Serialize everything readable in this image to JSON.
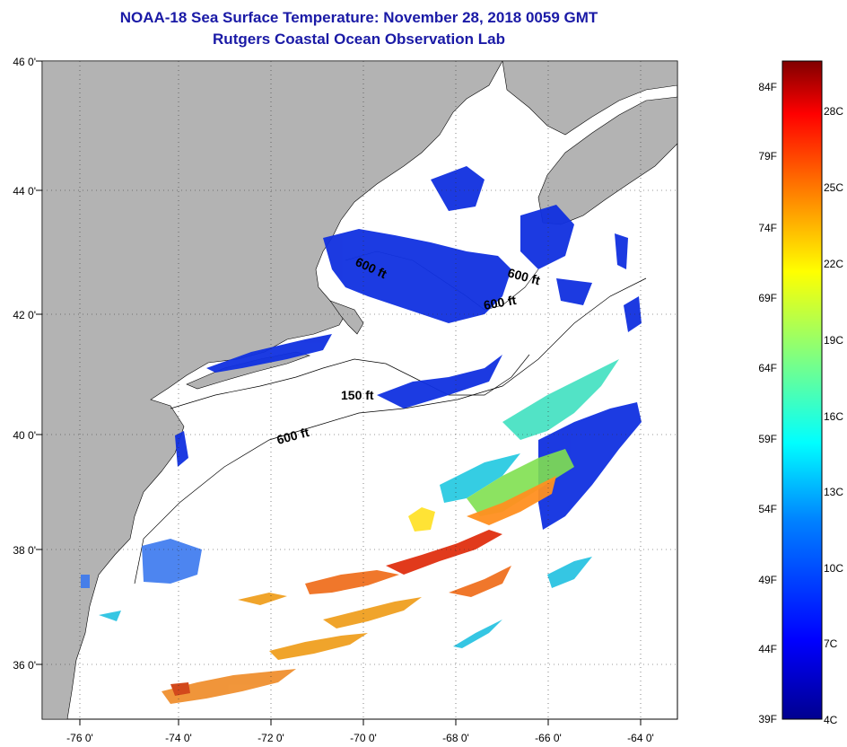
{
  "title": "NOAA-18 Sea Surface Temperature:  November 28, 2018 0059 GMT",
  "subtitle": "Rutgers Coastal Ocean Observation Lab",
  "map": {
    "lon_labels": [
      "-76 0'",
      "-74 0'",
      "-72 0'",
      "-70 0'",
      "-68 0'",
      "-66 0'",
      "-64 0'"
    ],
    "lat_labels": [
      "46 0'",
      "44 0'",
      "42 0'",
      "40 0'",
      "38 0'",
      "36 0'"
    ],
    "isobaths": [
      "600 ft",
      "600 ft",
      "600 ft",
      "150 ft",
      "600 ft"
    ],
    "colors": {
      "land": "#b3b3b3",
      "ocean": "#ffffff",
      "grid": "#333333"
    }
  },
  "colorbar": {
    "fahrenheit": [
      "84F",
      "79F",
      "74F",
      "69F",
      "64F",
      "59F",
      "54F",
      "49F",
      "44F",
      "39F"
    ],
    "celsius": [
      "28C",
      "25C",
      "22C",
      "19C",
      "16C",
      "13C",
      "10C",
      "7C",
      "4C"
    ],
    "stops": [
      "#00008f",
      "#0000ff",
      "#0080ff",
      "#00ffff",
      "#80ff80",
      "#ffff00",
      "#ff8000",
      "#ff0000",
      "#800000"
    ]
  }
}
